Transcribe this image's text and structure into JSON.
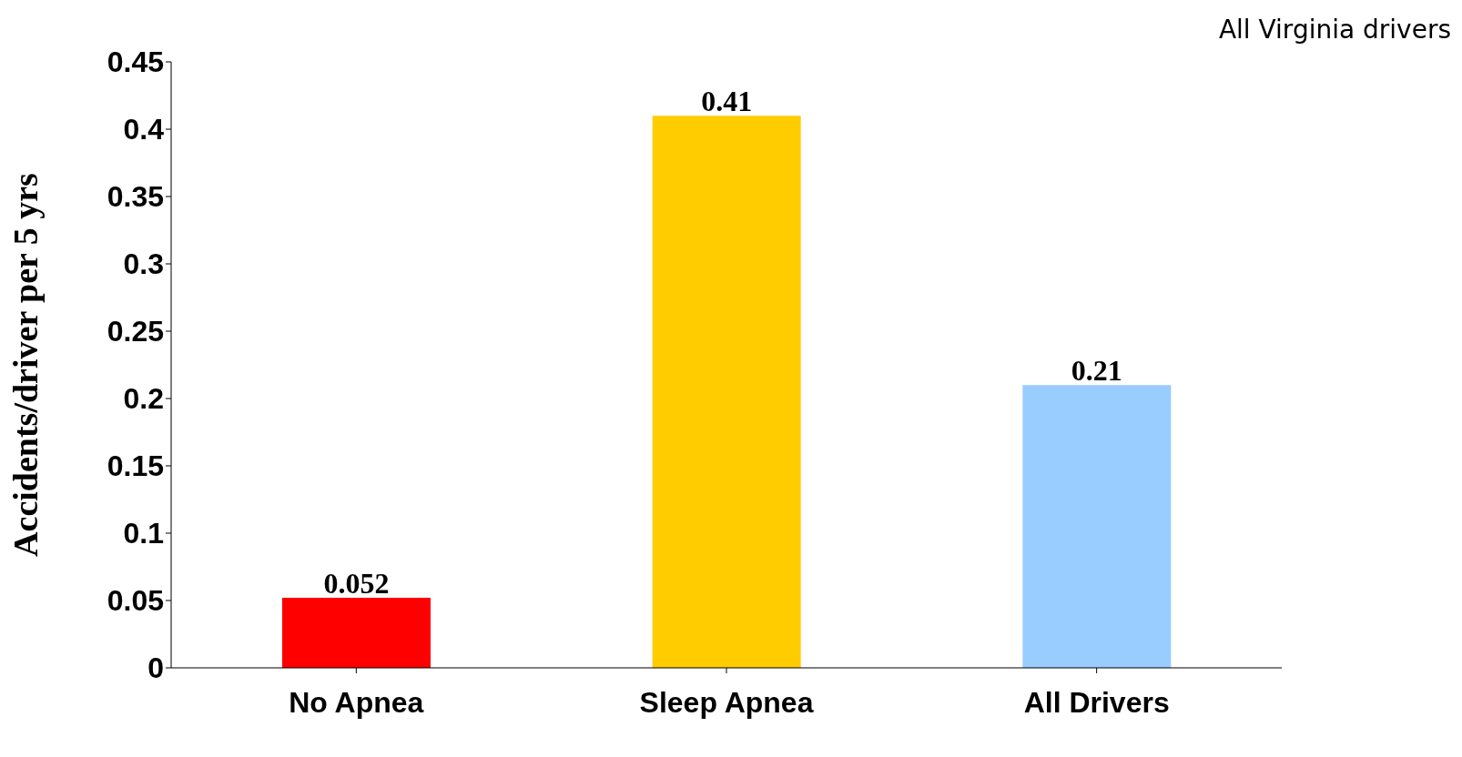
{
  "chart_data": {
    "type": "bar",
    "ylabel": "Accidents/driver per 5 yrs",
    "categories": [
      "No Apnea",
      "Sleep Apnea",
      "All Drivers"
    ],
    "values": [
      0.052,
      0.41,
      0.21
    ],
    "colors": [
      "#ff0000",
      "#ffcc00",
      "#99ccff"
    ],
    "ylim": [
      0,
      0.45
    ],
    "yticks": [
      0,
      0.05,
      0.1,
      0.15,
      0.2,
      0.25,
      0.3,
      0.35,
      0.4,
      0.45
    ],
    "data_labels": true,
    "grid": false,
    "legend": false,
    "annotations": [
      "All Virginia drivers"
    ]
  }
}
